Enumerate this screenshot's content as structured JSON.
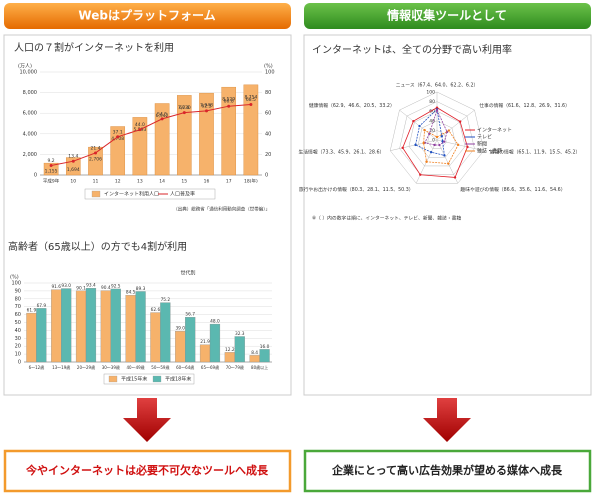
{
  "headers": [
    "Webはプラットフォーム",
    "情報収集ツールとして"
  ],
  "footers": [
    "今やインターネットは必要不可欠なツールへ成長",
    "企業にとって高い広告効果が望める媒体へ成長"
  ],
  "chart_data": [
    {
      "type": "combo",
      "title": "人口の７割がインターネットを利用",
      "categories": [
        "平成9年",
        "10",
        "11",
        "12",
        "13",
        "14",
        "15",
        "16",
        "17",
        "18(年)"
      ],
      "series": [
        {
          "name": "インターネット利用人口",
          "color": "#f6b26b",
          "values": [
            1155,
            1694,
            2706,
            4708,
            5593,
            6942,
            7730,
            7948,
            8529,
            8754
          ],
          "value_labels": [
            "1,155",
            "1,694",
            "2,706",
            "4,708",
            "5,593",
            "6,942",
            "7,730",
            "7,948",
            "8,529",
            "8,754"
          ]
        },
        {
          "name": "人口普及率",
          "color": "#d9262a",
          "axis": "y2",
          "values": [
            9.2,
            13.4,
            21.4,
            37.1,
            44.0,
            54.5,
            60.6,
            62.3,
            66.8,
            68.5
          ],
          "value_labels": [
            "9.2",
            "13.4",
            "21.4",
            "37.1",
            "44.0",
            "54.5",
            "60.6",
            "62.3",
            "66.8",
            "68.5"
          ]
        }
      ],
      "ylim": [
        0,
        10000
      ],
      "yticks": [
        0,
        {
          "value": 2000,
          "label": "2,000"
        },
        {
          "value": 4000,
          "label": "4,000"
        },
        {
          "value": 6000,
          "label": "6,000"
        },
        {
          "value": 8000,
          "label": "8,000"
        },
        {
          "value": 10000,
          "label": "10,000"
        }
      ],
      "y2lim": [
        0,
        100
      ],
      "y2ticks": [
        0,
        20,
        40,
        60,
        80,
        100
      ],
      "y_unit": "(万人)",
      "y2_unit": "(%)",
      "grid": true,
      "source": "（出典）総務省「通信利用動向調査（世帯編）」"
    },
    {
      "type": "radar",
      "title": "インターネットは、全ての分野で高い利用率",
      "categories": [
        "ニュース（67.4、64.0、62.2、6.2）",
        "仕事の情報（61.6、12.8、26.9、31.6）",
        "勉強の情報（65.1、11.9、15.5、45.2）",
        "趣味や遊びの情報（86.6、35.6、11.6、54.6）",
        "旅行やお出かけの情報（80.3、28.1、11.5、50.3）",
        "生活情報（73.3、45.9、26.1、28.6）",
        "健康情報（62.9、46.6、20.5、33.2）"
      ],
      "series": [
        {
          "name": "インターネット",
          "color": "#e0202a",
          "values": [
            67.4,
            61.6,
            65.1,
            86.6,
            80.3,
            73.3,
            62.9
          ]
        },
        {
          "name": "テレビ",
          "color": "#2050c0",
          "values": [
            64.0,
            12.8,
            11.9,
            35.6,
            28.1,
            45.9,
            46.6
          ]
        },
        {
          "name": "新聞",
          "color": "#9040a0",
          "values": [
            62.2,
            26.9,
            15.5,
            11.6,
            11.5,
            26.1,
            20.5
          ]
        },
        {
          "name": "雑誌・書籍",
          "color": "#f08020",
          "values": [
            6.2,
            31.6,
            45.2,
            54.6,
            50.3,
            28.6,
            33.2
          ]
        }
      ],
      "rlim": [
        0,
        100
      ],
      "rticks": [
        0,
        20,
        40,
        60,
        80,
        100
      ],
      "note": "※（ ）内の数字は順に、インターネット、テレビ、新聞、雑誌・書籍"
    },
    {
      "type": "bar",
      "title": "高齢者（65歳以上）の方でも4割が利用",
      "subtitle": "世代別",
      "categories": [
        "6〜12歳",
        "13〜19歳",
        "20〜29歳",
        "30〜39歳",
        "40〜49歳",
        "50〜59歳",
        "60〜64歳",
        "65〜69歳",
        "70〜79歳",
        "80歳以上"
      ],
      "series": [
        {
          "name": "平成15年末",
          "color": "#f6b26b",
          "values": [
            61.9,
            91.6,
            90.1,
            90.4,
            84.5,
            62.6,
            39.0,
            21.9,
            12.2,
            8.4
          ],
          "value_labels": [
            "61.9",
            "91.6",
            "90.1",
            "90.4",
            "84.5",
            "62.6",
            "39.0",
            "21.9",
            "12.2",
            "8.4"
          ]
        },
        {
          "name": "平成18年末",
          "color": "#5bb8b0",
          "values": [
            67.9,
            93.0,
            93.4,
            92.5,
            89.3,
            75.2,
            56.7,
            48.0,
            32.3,
            16.0
          ],
          "value_labels": [
            "67.9",
            "93.0",
            "93.4",
            "92.5",
            "89.3",
            "75.2",
            "56.7",
            "48.0",
            "32.3",
            "16.0"
          ]
        }
      ],
      "ylim": [
        0,
        100
      ],
      "yticks": [
        0,
        10,
        20,
        30,
        40,
        50,
        60,
        70,
        80,
        90,
        100
      ],
      "y_unit": "(%)",
      "grid": true
    }
  ]
}
